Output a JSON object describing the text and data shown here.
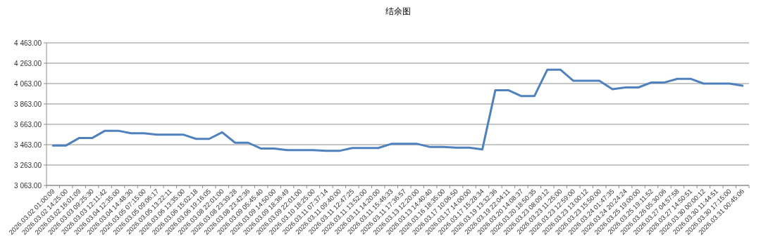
{
  "chart_data": {
    "type": "line",
    "title": "结余图",
    "categories": [
      "2026.03.02 01:00:09",
      "2026.03.02 14:25:00",
      "2026.03.02 16:01:09",
      "2026.03.03 09:25:30",
      "2026.03.03 12:11:42",
      "2026.03.04 12:35:00",
      "2026.03.04 14:48:30",
      "2026.03.05 07:15:00",
      "2026.03.05 09:06:17",
      "2026.03.05 13:22:11",
      "2026.03.06 13:35:00",
      "2026.03.06 15:02:18",
      "2026.03.06 19:16:05",
      "2026.03.08 22:01:00",
      "2026.03.08 23:39:28",
      "2026.03.08 23:42:36",
      "2026.03.09 05:45:40",
      "2026.03.09 14:50:00",
      "2026.03.09 18:36:49",
      "2026.03.09 22:01:00",
      "2026.03.10 18:25:00",
      "2026.03.11 07:37:14",
      "2026.03.11 09:40:00",
      "2026.03.11 12:47:25",
      "2026.03.11 13:52:00",
      "2026.03.11 14:20:00",
      "2026.03.11 15:46:33",
      "2026.03.11 17:36:57",
      "2026.03.13 12:20:00",
      "2026.03.13 14:40:40",
      "2026.03.16 18:35:00",
      "2026.03.17 10:06:50",
      "2026.03.17 14:00:00",
      "2026.03.17 15:28:34",
      "2026.03.19 13:32:36",
      "2026.03.19 22:04:11",
      "2026.03.20 14:08:37",
      "2026.03.20 18:50:35",
      "2026.03.23 08:09:12",
      "2026.03.23 11:25:00",
      "2026.03.23 12:59:00",
      "2026.03.23 13:00:12",
      "2026.03.23 15:50:00",
      "2026.03.24 01:47:35",
      "2026.03.24 20:24:24",
      "2026.03.25 19:00:00",
      "2026.03.25 19:11:52",
      "2026.03.26 05:30:06",
      "2026.03.27 04:57:58",
      "2026.03.27 14:50:51",
      "2026.03.30 00:00:12",
      "2026.03.30 11:44:51",
      "2026.03.30 17:15:00",
      "2026.03.31 00:45:06"
    ],
    "series": [
      {
        "color": "#4f81bd",
        "values": [
          3455,
          3455,
          3528,
          3528,
          3600,
          3600,
          3575,
          3575,
          3562,
          3562,
          3562,
          3520,
          3520,
          3585,
          3482,
          3482,
          3425,
          3425,
          3410,
          3410,
          3410,
          3402,
          3402,
          3430,
          3430,
          3430,
          3471,
          3471,
          3471,
          3440,
          3440,
          3433,
          3433,
          3416,
          3998,
          3998,
          3940,
          3940,
          4200,
          4200,
          4090,
          4090,
          4090,
          4008,
          4025,
          4025,
          4074,
          4074,
          4110,
          4110,
          4063,
          4063,
          4063,
          4042
        ]
      }
    ],
    "ylim": [
      3063,
      4463
    ],
    "yticks": [
      {
        "value": 3063,
        "label": "3 063.00"
      },
      {
        "value": 3263,
        "label": "3 263.00"
      },
      {
        "value": 3463,
        "label": "3 463.00"
      },
      {
        "value": 3663,
        "label": "3 663.00"
      },
      {
        "value": 3863,
        "label": "3 863.00"
      },
      {
        "value": 4063,
        "label": "4 063.00"
      },
      {
        "value": 4263,
        "label": "4 263.00"
      },
      {
        "value": 4463,
        "label": "4 463.00"
      }
    ],
    "grid": "y",
    "line_style": "solid"
  }
}
